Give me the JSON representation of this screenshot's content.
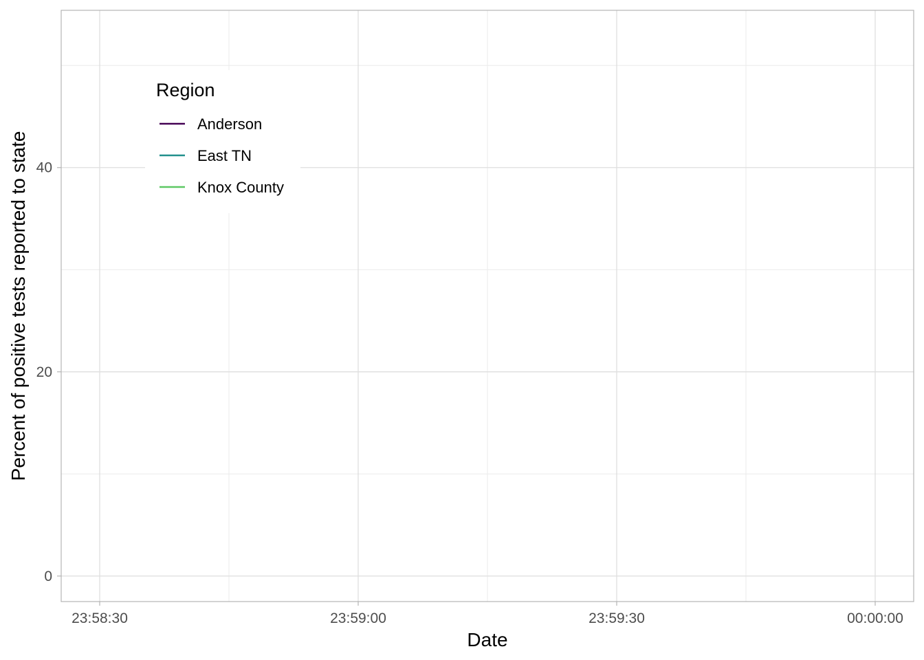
{
  "chart_data": {
    "type": "line",
    "title": "",
    "xlabel": "Date",
    "ylabel": "Percent of positive tests reported to state",
    "x_ticks": [
      "23:58:30",
      "23:59:00",
      "23:59:30",
      "00:00:00"
    ],
    "y_ticks": [
      "0",
      "20",
      "40"
    ],
    "ylim": [
      -2.5,
      55.4
    ],
    "grid": true,
    "legend": {
      "title": "Region",
      "placement": "top-left",
      "entries": [
        {
          "label": "Anderson",
          "color": "#440154"
        },
        {
          "label": "East TN",
          "color": "#21908C"
        },
        {
          "label": "Knox County",
          "color": "#5DC863"
        }
      ]
    },
    "series": [
      {
        "name": "Anderson",
        "color": "#440154",
        "values": []
      },
      {
        "name": "East TN",
        "color": "#21908C",
        "values": []
      },
      {
        "name": "Knox County",
        "color": "#5DC863",
        "values": []
      }
    ]
  }
}
